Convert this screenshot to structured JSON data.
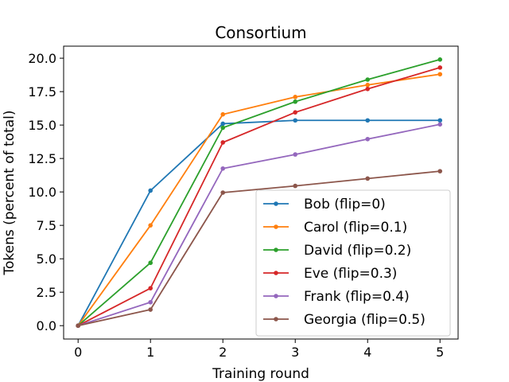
{
  "chart_data": {
    "type": "line",
    "title": "Consortium",
    "xlabel": "Training round",
    "ylabel": "Tokens (percent of total)",
    "x": [
      0,
      1,
      2,
      3,
      4,
      5
    ],
    "xlim": [
      -0.2,
      5.25
    ],
    "ylim": [
      -1.0,
      20.9
    ],
    "xticks": [
      "0",
      "1",
      "2",
      "3",
      "4",
      "5"
    ],
    "yticks": [
      "0.0",
      "2.5",
      "5.0",
      "7.5",
      "10.0",
      "12.5",
      "15.0",
      "17.5",
      "20.0"
    ],
    "grid": false,
    "legend_position": "lower-right",
    "series": [
      {
        "name": "Bob (flip=0)",
        "color": "#1f77b4",
        "values": [
          0.0,
          10.1,
          15.1,
          15.35,
          15.35,
          15.35
        ]
      },
      {
        "name": "Carol (flip=0.1)",
        "color": "#ff7f0e",
        "values": [
          0.0,
          7.5,
          15.8,
          17.1,
          18.0,
          18.8
        ]
      },
      {
        "name": "David (flip=0.2)",
        "color": "#2ca02c",
        "values": [
          0.0,
          4.7,
          14.8,
          16.75,
          18.4,
          19.9
        ]
      },
      {
        "name": "Eve (flip=0.3)",
        "color": "#d62728",
        "values": [
          0.0,
          2.8,
          13.7,
          15.95,
          17.7,
          19.3
        ]
      },
      {
        "name": "Frank (flip=0.4)",
        "color": "#9467bd",
        "values": [
          0.0,
          1.75,
          11.75,
          12.8,
          13.95,
          15.05
        ]
      },
      {
        "name": "Georgia (flip=0.5)",
        "color": "#8c564b",
        "values": [
          0.0,
          1.2,
          9.95,
          10.45,
          11.0,
          11.55
        ]
      }
    ]
  }
}
